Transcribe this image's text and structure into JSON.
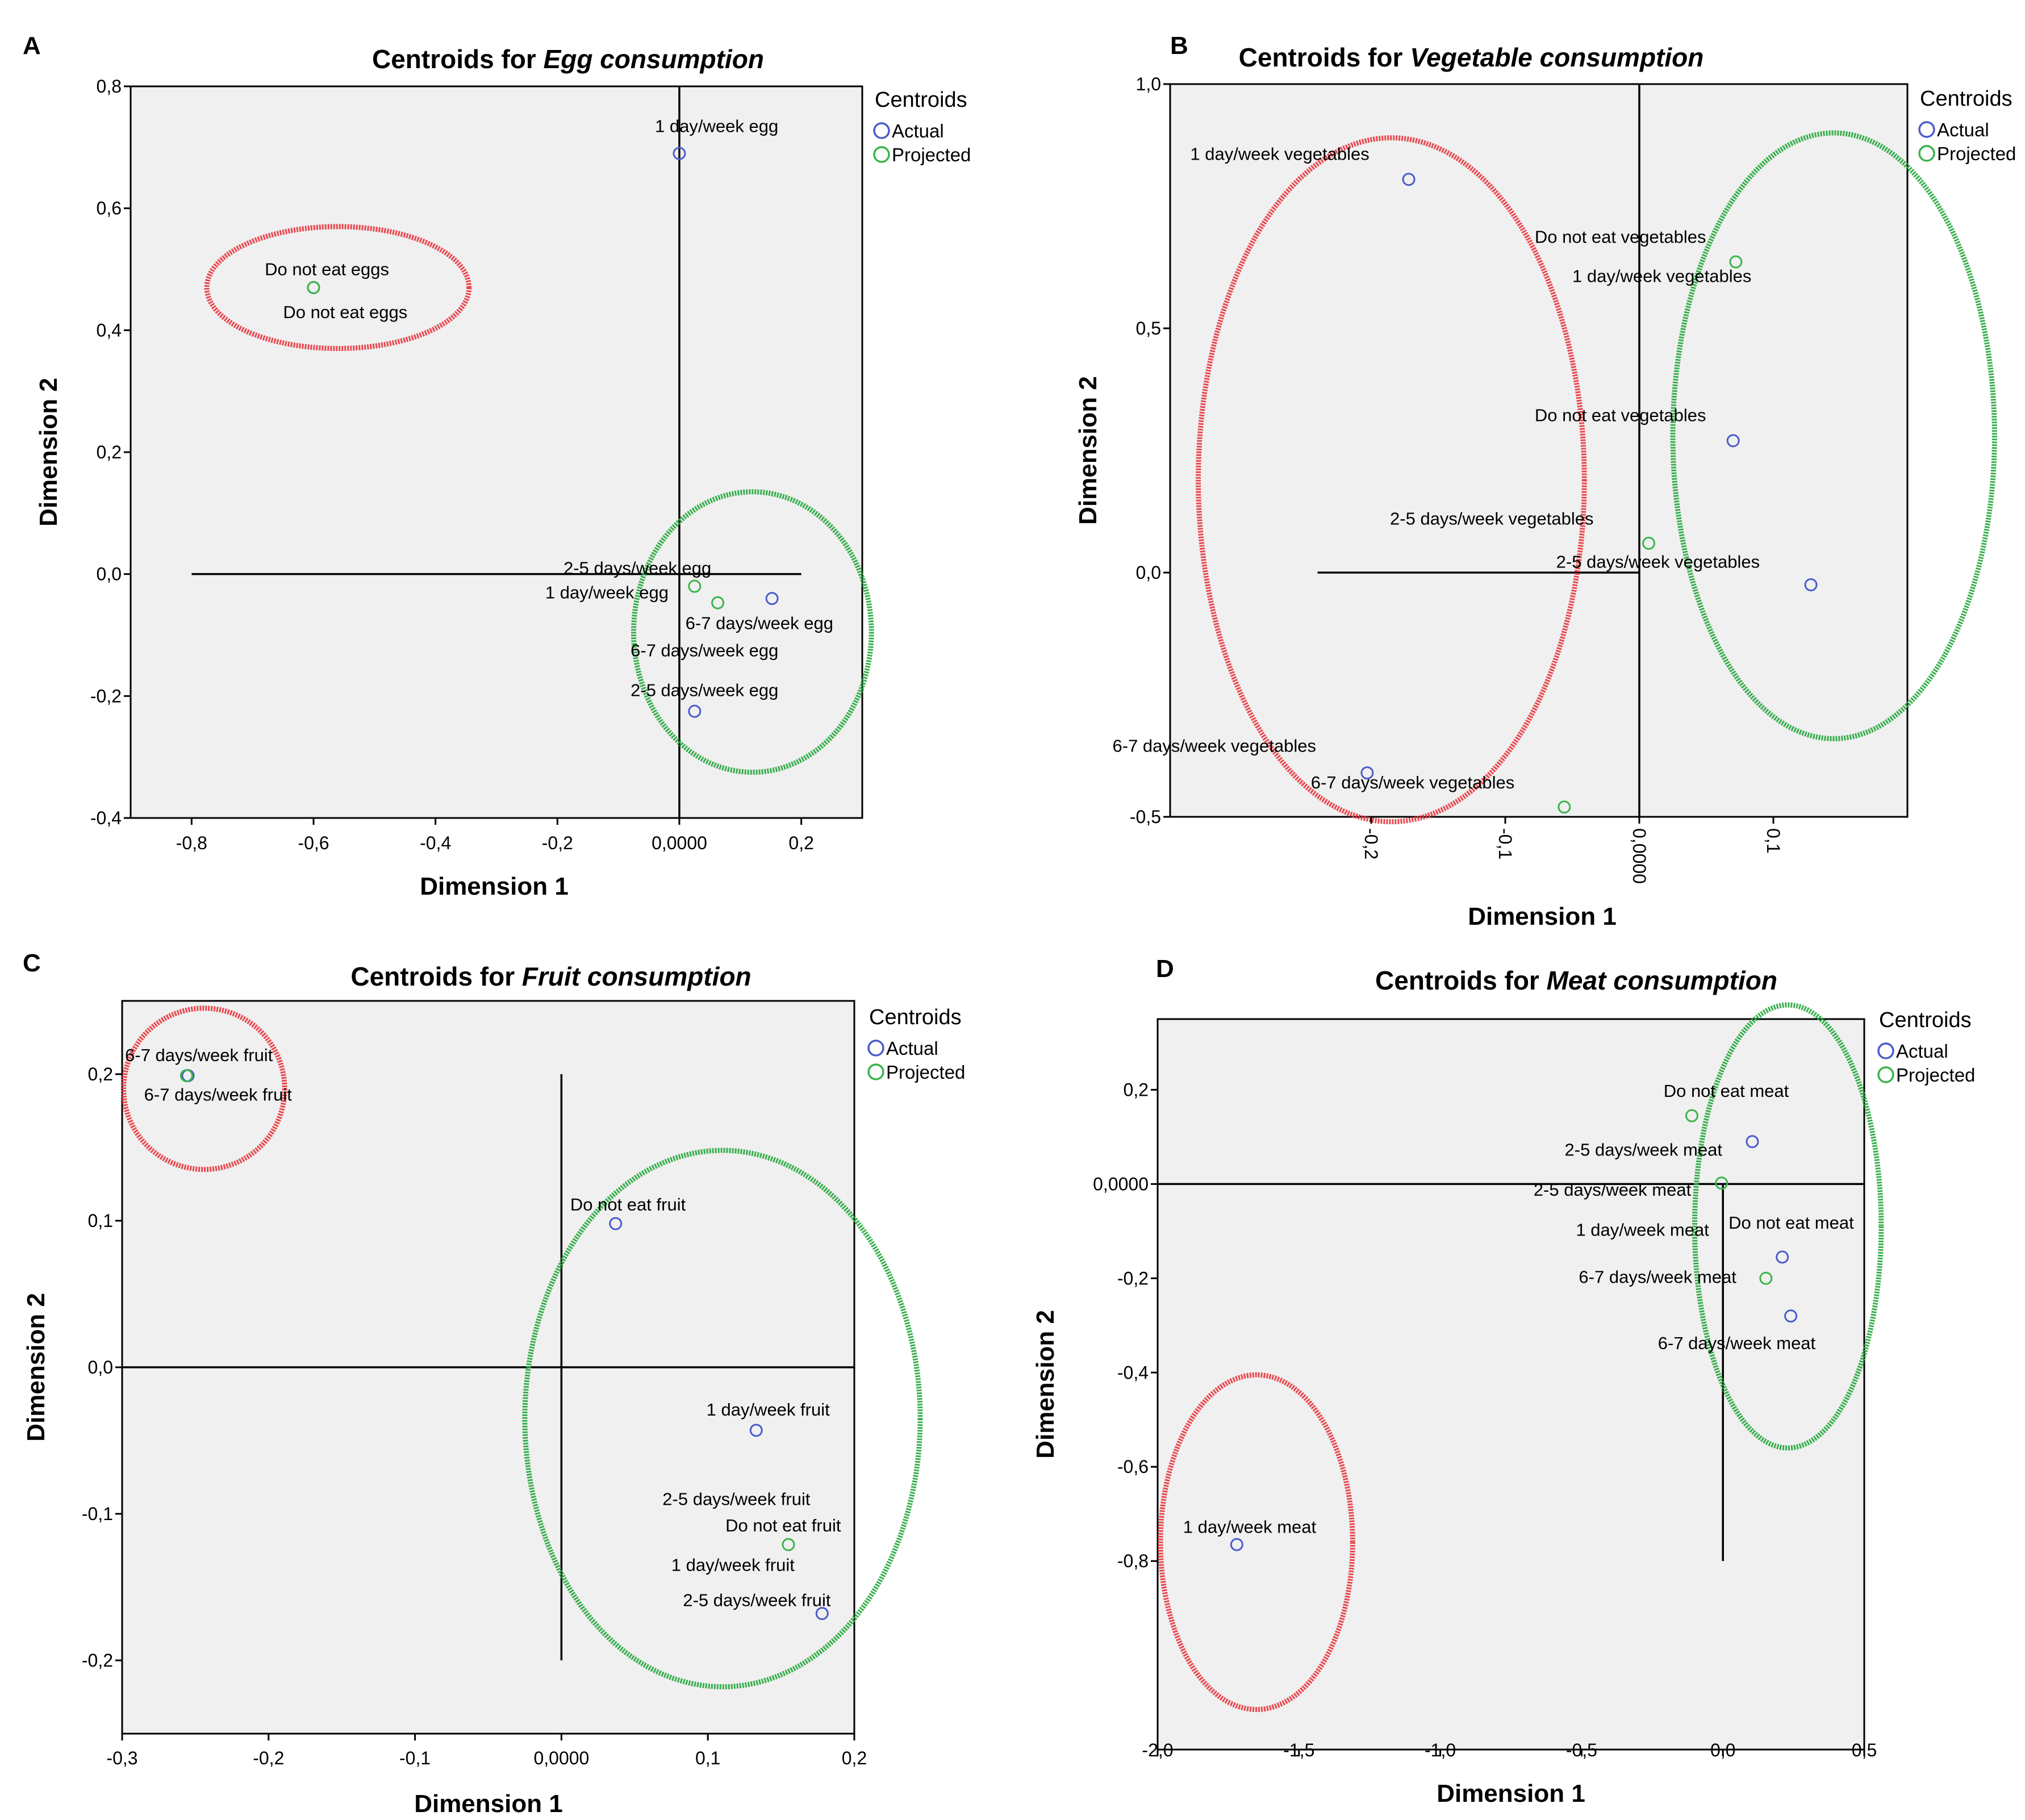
{
  "legend": {
    "title": "Centroids",
    "actual": "Actual",
    "projected": "Projected"
  },
  "colors": {
    "actual": "#4a5ccc",
    "projected": "#3cb44b",
    "red_ellipse": "#e8343c",
    "green_ellipse": "#22a63a",
    "plot_bg": "#f0f0f0",
    "axis": "#000000"
  },
  "chart_data": [
    {
      "panel": "A",
      "type": "scatter",
      "title_prefix": "Centroids for ",
      "title_italic": "Egg consumption",
      "xlabel": "Dimension 1",
      "ylabel": "Dimension 2",
      "xlim": [
        -0.9,
        0.3
      ],
      "ylim": [
        -0.4,
        0.8
      ],
      "xticks": [
        -0.8,
        -0.6,
        -0.4,
        -0.2,
        0.0,
        0.2
      ],
      "xtick_labels": [
        "-0,8",
        "-0,6",
        "-0,4",
        "-0,2",
        "0,0000",
        "0,2"
      ],
      "yticks": [
        -0.4,
        -0.2,
        0.0,
        0.2,
        0.4,
        0.6,
        0.8
      ],
      "ytick_labels": [
        "-0,4",
        "-0,2",
        "0,0",
        "0,2",
        "0,4",
        "0,6",
        "0,8"
      ],
      "reference_lines": {
        "h": {
          "y": 0,
          "x1": -0.8,
          "x2": 0.2
        },
        "v": {
          "x": 0,
          "y1": -0.4,
          "y2": 0.8
        }
      },
      "points": [
        {
          "label": "1 day/week egg",
          "type": "actual",
          "x": 0.0,
          "y": 0.69
        },
        {
          "label": "Do not eat eggs",
          "type": "actual",
          "x": -0.6,
          "y": 0.47
        },
        {
          "label": "Do not eat eggs",
          "type": "projected",
          "x": -0.6,
          "y": 0.47
        },
        {
          "label": "2-5 days/week egg",
          "type": "projected",
          "x": 0.025,
          "y": -0.02
        },
        {
          "label": "1 day/week egg",
          "type": "projected",
          "x": 0.063,
          "y": -0.047
        },
        {
          "label": "6-7 days/week egg",
          "type": "actual",
          "x": 0.152,
          "y": -0.04
        },
        {
          "label": "2-5 days/week egg",
          "type": "actual",
          "x": 0.025,
          "y": -0.225
        }
      ],
      "point_labels": [
        {
          "text": "1 day/week egg",
          "x": -0.04,
          "y": 0.725,
          "anchor": "start"
        },
        {
          "text": "Do not eat eggs",
          "x": -0.68,
          "y": 0.49,
          "anchor": "start"
        },
        {
          "text": "Do not eat eggs",
          "x": -0.65,
          "y": 0.42,
          "anchor": "start"
        },
        {
          "text": "2-5 days/week egg",
          "x": -0.19,
          "y": 0.0,
          "anchor": "start"
        },
        {
          "text": "1 day/week egg",
          "x": -0.22,
          "y": -0.04,
          "anchor": "start"
        },
        {
          "text": "6-7 days/week egg",
          "x": 0.01,
          "y": -0.09,
          "anchor": "start"
        },
        {
          "text": "6-7 days/week egg",
          "x": -0.08,
          "y": -0.135,
          "anchor": "start"
        },
        {
          "text": "2-5 days/week egg",
          "x": -0.08,
          "y": -0.2,
          "anchor": "start"
        }
      ],
      "ellipses": [
        {
          "color": "red",
          "cx": -0.56,
          "cy": 0.47,
          "rx": 0.215,
          "ry": 0.1
        },
        {
          "color": "green",
          "cx": 0.12,
          "cy": -0.095,
          "rx": 0.195,
          "ry": 0.23
        }
      ]
    },
    {
      "panel": "B",
      "type": "scatter",
      "title_prefix": "Centroids for ",
      "title_italic": "Vegetable consumption",
      "xlabel": "Dimension 1",
      "ylabel": "Dimension 2",
      "xlim": [
        -0.35,
        0.2
      ],
      "ylim": [
        -0.5,
        1.0
      ],
      "xticks": [
        -0.2,
        -0.1,
        0.0,
        0.1
      ],
      "xtick_labels": [
        "-0,2",
        "-0,1",
        "0,0000",
        "0,1"
      ],
      "xtick_rotated": true,
      "yticks": [
        -0.5,
        0.0,
        0.5,
        1.0
      ],
      "ytick_labels": [
        "-0,5",
        "0,0",
        "0,5",
        "1,0"
      ],
      "reference_lines": {
        "h": {
          "y": 0,
          "x1": -0.24,
          "x2": 0.0
        },
        "v": {
          "x": 0,
          "y1": -0.5,
          "y2": 1.0
        }
      },
      "points": [
        {
          "label": "1 day/week vegetables",
          "type": "actual",
          "x": -0.172,
          "y": 0.805
        },
        {
          "label": "Do not eat vegetables",
          "type": "projected",
          "x": 0.072,
          "y": 0.636
        },
        {
          "label": "Do not eat vegetables",
          "type": "actual",
          "x": 0.07,
          "y": 0.27
        },
        {
          "label": "2-5 days/week vegetables",
          "type": "projected",
          "x": 0.007,
          "y": 0.06
        },
        {
          "label": "2-5 days/week vegetables",
          "type": "actual",
          "x": 0.128,
          "y": -0.025
        },
        {
          "label": "6-7 days/week vegetables",
          "type": "actual",
          "x": -0.203,
          "y": -0.41
        },
        {
          "label": "6-7 days/week vegetables",
          "type": "projected",
          "x": -0.056,
          "y": -0.48
        }
      ],
      "point_labels": [
        {
          "text": "1 day/week vegetables",
          "x": -0.335,
          "y": 0.845,
          "anchor": "start"
        },
        {
          "text": "Do not eat vegetables",
          "x": -0.078,
          "y": 0.675,
          "anchor": "start"
        },
        {
          "text": "1 day/week vegetables",
          "x": -0.05,
          "y": 0.595,
          "anchor": "start"
        },
        {
          "text": "Do not eat vegetables",
          "x": -0.078,
          "y": 0.31,
          "anchor": "start"
        },
        {
          "text": "2-5 days/week vegetables",
          "x": -0.186,
          "y": 0.098,
          "anchor": "start"
        },
        {
          "text": "2-5 days/week vegetables",
          "x": -0.062,
          "y": 0.01,
          "anchor": "start"
        },
        {
          "text": "6-7 days/week vegetables",
          "x": -0.393,
          "y": -0.367,
          "anchor": "start"
        },
        {
          "text": "6-7 days/week vegetables",
          "x": -0.245,
          "y": -0.442,
          "anchor": "start"
        }
      ],
      "ellipses": [
        {
          "color": "red",
          "cx": -0.185,
          "cy": 0.19,
          "rx": 0.144,
          "ry": 0.7
        },
        {
          "color": "green",
          "cx": 0.145,
          "cy": 0.28,
          "rx": 0.12,
          "ry": 0.62
        }
      ]
    },
    {
      "panel": "C",
      "type": "scatter",
      "title_prefix": "Centroids for ",
      "title_italic": "Fruit consumption",
      "xlabel": "Dimension 1",
      "ylabel": "Dimension 2",
      "xlim": [
        -0.3,
        0.2
      ],
      "ylim": [
        -0.25,
        0.25
      ],
      "xticks": [
        -0.3,
        -0.2,
        -0.1,
        0.0,
        0.1,
        0.2
      ],
      "xtick_labels": [
        "-0,3",
        "-0,2",
        "-0,1",
        "0,0000",
        "0,1",
        "0,2"
      ],
      "yticks": [
        -0.2,
        -0.1,
        0.0,
        0.1,
        0.2
      ],
      "ytick_labels": [
        "-0,2",
        "-0,1",
        "0,0",
        "0,1",
        "0,2"
      ],
      "reference_lines": {
        "h": {
          "y": 0,
          "x1": -0.3,
          "x2": 0.2
        },
        "v": {
          "x": 0,
          "y1": -0.2,
          "y2": 0.2
        }
      },
      "points": [
        {
          "label": "6-7 days/week fruit",
          "type": "actual",
          "x": -0.255,
          "y": 0.199
        },
        {
          "label": "6-7 days/week fruit",
          "type": "projected",
          "x": -0.256,
          "y": 0.199
        },
        {
          "label": "Do not eat fruit",
          "type": "actual",
          "x": 0.037,
          "y": 0.098
        },
        {
          "label": "1 day/week fruit",
          "type": "actual",
          "x": 0.133,
          "y": -0.043
        },
        {
          "label": "Do not eat fruit",
          "type": "projected",
          "x": 0.155,
          "y": -0.121
        },
        {
          "label": "2-5 days/week fruit",
          "type": "actual",
          "x": 0.178,
          "y": -0.168
        }
      ],
      "point_labels": [
        {
          "text": "6-7 days/week fruit",
          "x": -0.298,
          "y": 0.209,
          "anchor": "start"
        },
        {
          "text": "6-7 days/week fruit",
          "x": -0.285,
          "y": 0.182,
          "anchor": "start"
        },
        {
          "text": "Do not eat fruit",
          "x": 0.006,
          "y": 0.107,
          "anchor": "start"
        },
        {
          "text": "1 day/week fruit",
          "x": 0.099,
          "y": -0.033,
          "anchor": "start"
        },
        {
          "text": "2-5 days/week fruit",
          "x": 0.069,
          "y": -0.094,
          "anchor": "start"
        },
        {
          "text": "Do not eat fruit",
          "x": 0.112,
          "y": -0.112,
          "anchor": "start"
        },
        {
          "text": "1 day/week fruit",
          "x": 0.075,
          "y": -0.139,
          "anchor": "start"
        },
        {
          "text": "2-5 days/week fruit",
          "x": 0.083,
          "y": -0.163,
          "anchor": "start"
        }
      ],
      "ellipses": [
        {
          "color": "red",
          "cx": -0.244,
          "cy": 0.19,
          "rx": 0.055,
          "ry": 0.055
        },
        {
          "color": "green",
          "cx": 0.11,
          "cy": -0.035,
          "rx": 0.135,
          "ry": 0.183
        }
      ]
    },
    {
      "panel": "D",
      "type": "scatter",
      "title_prefix": "Centroids for ",
      "title_italic": "Meat consumption",
      "xlabel": "Dimension 1",
      "ylabel": "Dimension 2",
      "xlim": [
        -2.0,
        0.5
      ],
      "ylim": [
        -1.2,
        0.35
      ],
      "xticks": [
        -2.0,
        -1.5,
        -1.0,
        -0.5,
        0.0,
        0.5
      ],
      "xtick_labels": [
        "-2,0",
        "-1,5",
        "-1,0",
        "-0,5",
        "0,0",
        "0,5"
      ],
      "yticks": [
        -0.8,
        -0.6,
        -0.4,
        -0.2,
        0.0,
        0.2
      ],
      "ytick_labels": [
        "-0,8",
        "-0,6",
        "-0,4",
        "-0,2",
        "0,0000",
        "0,2"
      ],
      "reference_lines": {
        "h": {
          "y": 0,
          "x1": -2.0,
          "x2": 0.5
        },
        "v": {
          "x": 0,
          "y1": -0.8,
          "y2": 0.0
        }
      },
      "points": [
        {
          "label": "Do not eat meat",
          "type": "projected",
          "x": -0.11,
          "y": 0.145
        },
        {
          "label": "2-5 days/week meat",
          "type": "actual",
          "x": 0.104,
          "y": 0.09
        },
        {
          "label": "2-5 days/week meat",
          "type": "projected",
          "x": -0.005,
          "y": 0.002
        },
        {
          "label": "Do not eat meat",
          "type": "actual",
          "x": 0.21,
          "y": -0.155
        },
        {
          "label": "6-7 days/week meat",
          "type": "projected",
          "x": 0.152,
          "y": -0.2
        },
        {
          "label": "6-7 days/week meat",
          "type": "actual",
          "x": 0.24,
          "y": -0.28
        },
        {
          "label": "1 day/week meat",
          "type": "actual",
          "x": -1.72,
          "y": -0.765
        }
      ],
      "point_labels": [
        {
          "text": "Do not eat meat",
          "x": -0.21,
          "y": 0.185,
          "anchor": "start"
        },
        {
          "text": "2-5 days/week meat",
          "x": -0.56,
          "y": 0.06,
          "anchor": "start"
        },
        {
          "text": "2-5 days/week meat",
          "x": -0.67,
          "y": -0.025,
          "anchor": "start"
        },
        {
          "text": "1 day/week meat",
          "x": -0.52,
          "y": -0.11,
          "anchor": "start"
        },
        {
          "text": "Do not eat meat",
          "x": 0.02,
          "y": -0.095,
          "anchor": "start"
        },
        {
          "text": "6-7 days/week meat",
          "x": -0.51,
          "y": -0.21,
          "anchor": "start"
        },
        {
          "text": "6-7 days/week meat",
          "x": -0.23,
          "y": -0.35,
          "anchor": "start"
        },
        {
          "text": "1 day/week meat",
          "x": -1.91,
          "y": -0.74,
          "anchor": "start"
        }
      ],
      "ellipses": [
        {
          "color": "red",
          "cx": -1.65,
          "cy": -0.76,
          "rx": 0.34,
          "ry": 0.355
        },
        {
          "color": "green",
          "cx": 0.23,
          "cy": -0.09,
          "rx": 0.33,
          "ry": 0.47
        }
      ]
    }
  ]
}
